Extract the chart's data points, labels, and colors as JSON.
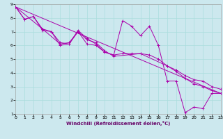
{
  "xlabel": "Windchill (Refroidissement éolien,°C)",
  "bg_color": "#cce8ee",
  "line_color": "#aa00aa",
  "grid_color": "#aadddd",
  "spine_color": "#aaaaaa",
  "xmin": 0,
  "xmax": 23,
  "ymin": 1,
  "ymax": 9,
  "line1_x": [
    0,
    1,
    2,
    3,
    4,
    5,
    6,
    7,
    8,
    9,
    10,
    11,
    12,
    13,
    14,
    15,
    16,
    17,
    18,
    19,
    20,
    21,
    22,
    23
  ],
  "line1_y": [
    8.8,
    7.9,
    8.1,
    7.1,
    7.0,
    6.0,
    6.1,
    7.0,
    6.1,
    6.0,
    5.5,
    5.3,
    7.8,
    7.4,
    6.7,
    7.4,
    6.0,
    3.4,
    3.4,
    1.1,
    1.5,
    1.4,
    2.5,
    2.5
  ],
  "line2_x": [
    0,
    1,
    2,
    3,
    4,
    5,
    6,
    7,
    8,
    9,
    10,
    11,
    12,
    13,
    14,
    15,
    16,
    17,
    18,
    19,
    20,
    21,
    22,
    23
  ],
  "line2_y": [
    8.8,
    7.9,
    8.1,
    7.2,
    7.0,
    6.2,
    6.1,
    7.1,
    6.5,
    6.1,
    5.5,
    5.3,
    5.4,
    5.4,
    5.4,
    5.3,
    5.0,
    4.5,
    4.2,
    3.8,
    3.5,
    3.4,
    3.0,
    2.8
  ],
  "line3_x": [
    0,
    3,
    5,
    6,
    7,
    8,
    9,
    10,
    11,
    14,
    17,
    18,
    19,
    20,
    21,
    22,
    23
  ],
  "line3_y": [
    8.8,
    7.2,
    6.1,
    6.2,
    7.0,
    6.4,
    6.2,
    5.6,
    5.2,
    5.4,
    4.5,
    4.1,
    3.6,
    3.2,
    3.0,
    2.7,
    2.5
  ],
  "line4_x": [
    0,
    23
  ],
  "line4_y": [
    8.8,
    2.5
  ]
}
